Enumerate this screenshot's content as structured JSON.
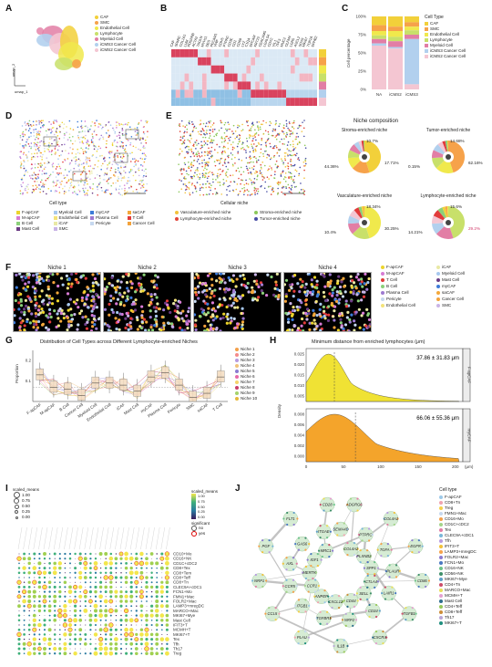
{
  "labels": {
    "A": "A",
    "B": "B",
    "C": "C",
    "D": "D",
    "E": "E",
    "F": "F",
    "G": "G",
    "H": "H",
    "I": "I",
    "J": "J"
  },
  "A": {
    "legend": [
      {
        "name": "CAF",
        "color": "#f2d03a"
      },
      {
        "name": "SMC",
        "color": "#f6a24a"
      },
      {
        "name": "Endothelial Cell",
        "color": "#f0e94c"
      },
      {
        "name": "Lymphocyte",
        "color": "#c8e06a"
      },
      {
        "name": "Myeloid Cell",
        "color": "#e27ea5"
      },
      {
        "name": "iCMS3 Cancer Cell",
        "color": "#b2d0ee"
      },
      {
        "name": "iCMS2 Cancer Cell",
        "color": "#f4c6d2"
      }
    ],
    "xlabel": "umap_1",
    "ylabel": "umap_2"
  },
  "B": {
    "genes": [
      "CAF",
      "SPARC",
      "COL1A1",
      "LUM",
      "PDGFRB",
      "ACTA2",
      "TAGLN",
      "MYH11",
      "DES",
      "PECAM1",
      "VWF",
      "CDH5",
      "PTPRC",
      "CD3E",
      "CD2",
      "CD68",
      "LYZ",
      "C1QA",
      "EPCAM",
      "KRT20",
      "CEACAM5",
      "LGALS4",
      "CDX2",
      "VIL1",
      "TFF3",
      "MUC2",
      "OLFM4",
      "LGR5",
      "ASCL2",
      "SOX9",
      "MKI67",
      "TOP2A",
      "EPHB2"
    ]
  },
  "C": {
    "ylabel": "Cell percentage",
    "categories": [
      "NA",
      "iCMS2",
      "iCMS3"
    ],
    "ticks": [
      "0%",
      "25%",
      "50%",
      "75%",
      "100%"
    ],
    "legend_title": "Cell Type",
    "legend": [
      {
        "name": "CAF",
        "color": "#f2d03a"
      },
      {
        "name": "SMC",
        "color": "#f6a24a"
      },
      {
        "name": "Endothelial Cell",
        "color": "#f0e94c"
      },
      {
        "name": "Lymphocyte",
        "color": "#c8e06a"
      },
      {
        "name": "Myeloid Cell",
        "color": "#e27ea5"
      },
      {
        "name": "iCMS3 Cancer Cell",
        "color": "#b2d0ee"
      },
      {
        "name": "iCMS2 Cancer Cell",
        "color": "#f4c6d2"
      }
    ]
  },
  "D": {
    "caption": "Cell type",
    "legend": [
      {
        "name": "F-apCAF",
        "color": "#ecd42c"
      },
      {
        "name": "Myeloid Cell",
        "color": "#a7c8ef"
      },
      {
        "name": "myCAF",
        "color": "#3d7bd8"
      },
      {
        "name": "saCAF",
        "color": "#f4a83a"
      },
      {
        "name": "M-apCAF",
        "color": "#d77bd4"
      },
      {
        "name": "Endothelial Cell",
        "color": "#f4e37a"
      },
      {
        "name": "Plasma Cell",
        "color": "#9e7ad1"
      },
      {
        "name": "T Cell",
        "color": "#e23b3b"
      },
      {
        "name": "B Cell",
        "color": "#8bd07a"
      },
      {
        "name": "iCAF",
        "color": "#e9e9a5"
      },
      {
        "name": "Pericyte",
        "color": "#c6d8ef"
      },
      {
        "name": "Cancer Cell",
        "color": "#f3a23b"
      },
      {
        "name": "Mast Cell",
        "color": "#6b3c84"
      },
      {
        "name": "SMC",
        "color": "#c9b4e6"
      }
    ]
  },
  "E": {
    "caption": "Cellular niche",
    "legend": [
      {
        "name": "Vasculature-enriched niche",
        "color": "#f2c23a"
      },
      {
        "name": "Stroma-enriched niche",
        "color": "#8cc85a"
      },
      {
        "name": "Lymphocyte-enriched niche",
        "color": "#e2463a"
      },
      {
        "name": "Tumor-enriched niche",
        "color": "#4a4fa6"
      }
    ],
    "niche_title": "Niche composition",
    "pies": [
      {
        "title": "Stroma-enriched niche",
        "p1": "10.7%",
        "p2": "44.36%",
        "p3": "17.71%"
      },
      {
        "title": "Tumor-enriched niche",
        "p1": "14.68%",
        "p2": "0.15%",
        "p3": "62.16%"
      },
      {
        "title": "Vasculature-enriched niche",
        "p1": "18.34%",
        "p2": "10.4%",
        "p3": "30.25%"
      },
      {
        "title": "Lymphocyte-enriched niche",
        "p1": "15.6%",
        "p2": "14.21%",
        "p3": "29.2%"
      }
    ]
  },
  "F": {
    "niches": [
      "Niche 1",
      "Niche 2",
      "Niche 3",
      "Niche 4"
    ],
    "legend": [
      {
        "name": "F-apCAF",
        "color": "#ecd42c"
      },
      {
        "name": "iCAF",
        "color": "#e9e9a5"
      },
      {
        "name": "M-apCAF",
        "color": "#d77bd4"
      },
      {
        "name": "Myeloid Cell",
        "color": "#a7c8ef"
      },
      {
        "name": "T Cell",
        "color": "#e23b3b"
      },
      {
        "name": "Mast Cell",
        "color": "#6b3c84"
      },
      {
        "name": "B Cell",
        "color": "#8bd07a"
      },
      {
        "name": "myCAF",
        "color": "#3d7bd8"
      },
      {
        "name": "Plasma Cell",
        "color": "#9e7ad1"
      },
      {
        "name": "saCAF",
        "color": "#f4a83a"
      },
      {
        "name": "Pericyte",
        "color": "#c6d8ef"
      },
      {
        "name": "Cancer Cell",
        "color": "#f3a23b"
      },
      {
        "name": "Endothelial Cell",
        "color": "#f4e37a"
      },
      {
        "name": "SMC",
        "color": "#c9b4e6"
      }
    ]
  },
  "G": {
    "title": "Distribution of Cell Types across Different Lymphocyte-enriched Niches",
    "ylabel": "Proportion",
    "yticks": [
      "0.1",
      "0.2"
    ],
    "categories": [
      "F-apCAF",
      "M-apCAF",
      "B Cell",
      "Cancer Cell",
      "Myeloid Cell",
      "Endothelial Cell",
      "iCAF",
      "Mast Cell",
      "myCAF",
      "Plasma Cell",
      "Pericyte",
      "SMC",
      "saCAF",
      "T Cell"
    ],
    "legend": [
      {
        "name": "Niche 1",
        "color": "#f4a04a"
      },
      {
        "name": "Niche 2",
        "color": "#f58b8b"
      },
      {
        "name": "Niche 3",
        "color": "#b79be0"
      },
      {
        "name": "Niche 4",
        "color": "#f1c27a"
      },
      {
        "name": "Niche 5",
        "color": "#8c7bd0"
      },
      {
        "name": "Niche 6",
        "color": "#e86aa8"
      },
      {
        "name": "Niche 7",
        "color": "#f5d36a"
      },
      {
        "name": "Niche 8",
        "color": "#c93e6a"
      },
      {
        "name": "Niche 9",
        "color": "#a6d26a"
      },
      {
        "name": "Niche 10",
        "color": "#e6b73a"
      }
    ]
  },
  "H": {
    "title": "Minimum distance from enriched lymphocytes (μm)",
    "ylabel": "Density",
    "top": {
      "stat": "37.86 ± 31.83 μm",
      "label": "F-apCAF",
      "color": "#f0e12a",
      "yticks": [
        "0.005",
        "0.010",
        "0.015",
        "0.020",
        "0.025"
      ]
    },
    "bottom": {
      "stat": "66.06 ± 55.36 μm",
      "label": "myCAF",
      "color": "#f4a020",
      "yticks": [
        "0.000",
        "0.002",
        "0.004",
        "0.006",
        "0.008"
      ]
    },
    "xticks": [
      "0",
      "50",
      "100",
      "150",
      "200"
    ],
    "xunit": "(μm)"
  },
  "I": {
    "size_title": "scaled_means",
    "size_ticks": [
      "1.00",
      "0.75",
      "0.50",
      "0.25",
      "0.00"
    ],
    "color_title": "scaled_means",
    "color_ticks": [
      "1.00",
      "0.75",
      "0.50",
      "0.25",
      "0.00"
    ],
    "sig_title": "significant",
    "sig_items": [
      "no",
      "yes"
    ],
    "rows": [
      "CD10+Mo",
      "CD16+NK",
      "CD1C+cDC2",
      "CD8+Tex",
      "CD8+Tem",
      "CD8+Teff",
      "CD8+Tn",
      "CLEC9A+cDC1",
      "FCN1+Mo",
      "FMN1+Mac",
      "FOLR2+Mac",
      "LAMP3+mregDC",
      "MARCO+Mac",
      "MKI67+Mye",
      "Mast Cell",
      "IFIT3+T",
      "MCMH+T",
      "MKI67+T",
      "Tex",
      "Tfh",
      "Th17",
      "Treg"
    ]
  },
  "J": {
    "legend_title": "Cell type",
    "legend": [
      {
        "name": "F-apCAF",
        "color": "#9ec9e8"
      },
      {
        "name": "CD8+Tn",
        "color": "#f0a4b0"
      },
      {
        "name": "Treg",
        "color": "#f5d04a"
      },
      {
        "name": "FMN1+Mac",
        "color": "#c6d8ef"
      },
      {
        "name": "CD16+Mo",
        "color": "#f4a04a"
      },
      {
        "name": "CD1C+cDC2",
        "color": "#a3d48a"
      },
      {
        "name": "Tex",
        "color": "#e27ea5"
      },
      {
        "name": "CLEC9A+cDC1",
        "color": "#7ab6d8"
      },
      {
        "name": "Tfh",
        "color": "#b79be0"
      },
      {
        "name": "IFIT3+T",
        "color": "#f2c23a"
      },
      {
        "name": "LAMP3+mregDC",
        "color": "#f6a24a"
      },
      {
        "name": "FOLR2+Mac",
        "color": "#8c7bd0"
      },
      {
        "name": "FCN1+Mo",
        "color": "#4a78c2"
      },
      {
        "name": "CD16+NK",
        "color": "#6ec38a"
      },
      {
        "name": "CD56+NK",
        "color": "#3f8f6a"
      },
      {
        "name": "MKI67+Mye",
        "color": "#5e9ec8"
      },
      {
        "name": "CD4+Tn",
        "color": "#cc4d6a"
      },
      {
        "name": "MARCO+Mac",
        "color": "#e8e05a"
      },
      {
        "name": "MCMH+T",
        "color": "#e3a0d0"
      },
      {
        "name": "Mast Cell",
        "color": "#2e6e8e"
      },
      {
        "name": "CD4+Teff",
        "color": "#98c95a"
      },
      {
        "name": "CD8+Teff",
        "color": "#cd8e3a"
      },
      {
        "name": "Th17",
        "color": "#b9a6d6"
      },
      {
        "name": "MKI67+T",
        "color": "#1f8f7e"
      }
    ],
    "nodes": [
      "SEMA4D",
      "ADGRG6",
      "COL4A2",
      "PTPRC",
      "COL4A1",
      "PLXNB2",
      "TGFA",
      "EGFR",
      "SPP1",
      "PLAUR",
      "CD86",
      "CTLA4",
      "LAIR1",
      "TGFB1",
      "SELL",
      "CD34",
      "CXCR4",
      "CD44",
      "NRP2",
      "IL1B",
      "CXCL12",
      "TGFBR1",
      "PLAU",
      "ANPEP",
      "ITGB1",
      "CCL5",
      "CCR1",
      "CCR5",
      "NRP1",
      "MERTK",
      "AXL",
      "PGF",
      "IGF1",
      "GAS6",
      "FLT1",
      "MRC1",
      "ITGAE",
      "CD28"
    ]
  }
}
